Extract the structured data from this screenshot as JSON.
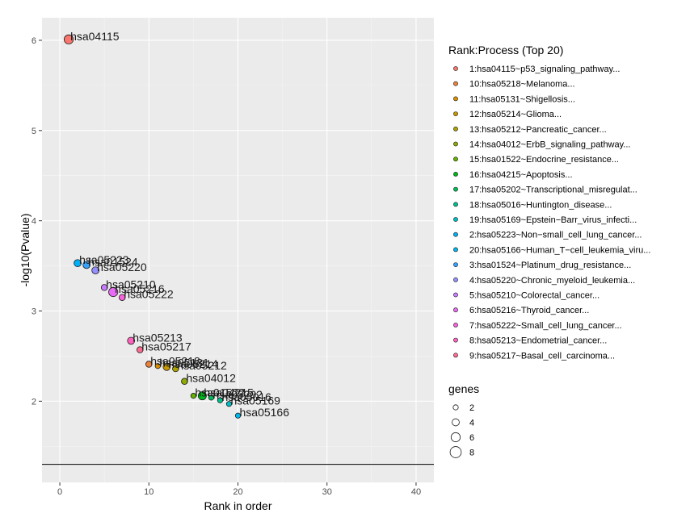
{
  "chart_data": {
    "type": "scatter",
    "xlabel": "Rank in order",
    "ylabel": "-log10(Pvalue)",
    "xlim": [
      -2,
      42
    ],
    "ylim": [
      1.1,
      6.25
    ],
    "x_ticks": [
      0,
      10,
      20,
      30,
      40
    ],
    "y_ticks": [
      2,
      3,
      4,
      5,
      6
    ],
    "grid": true,
    "threshold_line_y": 1.3,
    "legend_color_title": "Rank:Process (Top 20)",
    "legend_size_title": "genes",
    "size_legend_values": [
      2,
      4,
      6,
      8
    ],
    "points": [
      {
        "rank": 1,
        "y": 6.01,
        "genes": 6,
        "label": "hsa04115",
        "legend": "1:hsa04115~p53_signaling_pathway...",
        "color": "#F8766D"
      },
      {
        "rank": 2,
        "y": 3.53,
        "genes": 4,
        "label": "hsa05223",
        "legend": "2:hsa05223~Non−small_cell_lung_cancer...",
        "color": "#00B0F6"
      },
      {
        "rank": 3,
        "y": 3.51,
        "genes": 4,
        "label": "hsa01524",
        "legend": "3:hsa01524~Platinum_drug_resistance...",
        "color": "#35A2FF"
      },
      {
        "rank": 4,
        "y": 3.45,
        "genes": 4,
        "label": "hsa05220",
        "legend": "4:hsa05220~Chronic_myeloid_leukemia...",
        "color": "#9590FF"
      },
      {
        "rank": 5,
        "y": 3.26,
        "genes": 3,
        "label": "hsa05210",
        "legend": "5:hsa05210~Colorectal_cancer...",
        "color": "#C77CFF"
      },
      {
        "rank": 6,
        "y": 3.21,
        "genes": 6,
        "label": "hsa05216",
        "legend": "6:hsa05216~Thyroid_cancer...",
        "color": "#E76BF3"
      },
      {
        "rank": 7,
        "y": 3.15,
        "genes": 3,
        "label": "hsa05222",
        "legend": "7:hsa05222~Small_cell_lung_cancer...",
        "color": "#FA62DB"
      },
      {
        "rank": 8,
        "y": 2.67,
        "genes": 4,
        "label": "hsa05213",
        "legend": "8:hsa05213~Endometrial_cancer...",
        "color": "#FF62BC"
      },
      {
        "rank": 9,
        "y": 2.57,
        "genes": 3,
        "label": "hsa05217",
        "legend": "9:hsa05217~Basal_cell_carcinoma...",
        "color": "#FF6C91"
      },
      {
        "rank": 10,
        "y": 2.41,
        "genes": 3,
        "label": "hsa05218",
        "legend": "10:hsa05218~Melanoma...",
        "color": "#EC8239"
      },
      {
        "rank": 11,
        "y": 2.39,
        "genes": 2,
        "label": "hsa05131",
        "legend": "11:hsa05131~Shigellosis...",
        "color": "#DB8E00"
      },
      {
        "rank": 12,
        "y": 2.38,
        "genes": 4,
        "label": "hsa05214",
        "legend": "12:hsa05214~Glioma...",
        "color": "#C79800"
      },
      {
        "rank": 13,
        "y": 2.36,
        "genes": 3,
        "label": "hsa05212",
        "legend": "13:hsa05212~Pancreatic_cancer...",
        "color": "#AEA200"
      },
      {
        "rank": 14,
        "y": 2.22,
        "genes": 3,
        "label": "hsa04012",
        "legend": "14:hsa04012~ErbB_signaling_pathway...",
        "color": "#8FAA00"
      },
      {
        "rank": 15,
        "y": 2.06,
        "genes": 2,
        "label": "hsa01522",
        "legend": "15:hsa01522~Endocrine_resistance...",
        "color": "#64B200"
      },
      {
        "rank": 16,
        "y": 2.06,
        "genes": 5,
        "label": "hsa04215",
        "legend": "16:hsa04215~Apoptosis...",
        "color": "#00B81B"
      },
      {
        "rank": 17,
        "y": 2.04,
        "genes": 2,
        "label": "hsa05202",
        "legend": "17:hsa05202~Transcriptional_misregulat...",
        "color": "#00BD5C"
      },
      {
        "rank": 18,
        "y": 2.01,
        "genes": 2,
        "label": "hsa05016",
        "legend": "18:hsa05016~Huntington_disease...",
        "color": "#00C08E"
      },
      {
        "rank": 19,
        "y": 1.97,
        "genes": 2,
        "label": "hsa05169",
        "legend": "19:hsa05169~Epstein−Barr_virus_infecti...",
        "color": "#00BFC4"
      },
      {
        "rank": 20,
        "y": 1.84,
        "genes": 2,
        "label": "hsa05166",
        "legend": "20:hsa05166~Human_T−cell_leukemia_viru...",
        "color": "#00B6EB"
      }
    ],
    "legend_order": [
      1,
      10,
      11,
      12,
      13,
      14,
      15,
      16,
      17,
      18,
      19,
      2,
      20,
      3,
      4,
      5,
      6,
      7,
      8,
      9
    ]
  }
}
